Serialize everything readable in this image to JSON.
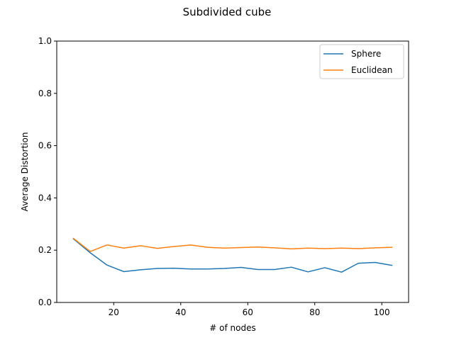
{
  "chart_data": {
    "type": "line",
    "title": "Subdivided cube",
    "xlabel": "# of nodes",
    "ylabel": "Average Distortion",
    "xlim": [
      3,
      108
    ],
    "ylim": [
      0,
      1.0
    ],
    "xticks": [
      20,
      40,
      60,
      80,
      100
    ],
    "xtick_labels": [
      "20",
      "40",
      "60",
      "80",
      "100"
    ],
    "yticks": [
      0,
      0.2,
      0.4,
      0.6,
      0.8,
      1.0
    ],
    "ytick_labels": [
      "0.0",
      "0.2",
      "0.4",
      "0.6",
      "0.8",
      "1.0"
    ],
    "grid": false,
    "legend_position": "top-right",
    "x": [
      8,
      13,
      18,
      23,
      28,
      33,
      38,
      43,
      48,
      53,
      58,
      63,
      68,
      73,
      78,
      83,
      88,
      93,
      98,
      103
    ],
    "series": [
      {
        "name": "Sphere",
        "color": "#1f77b4",
        "values": [
          0.243,
          0.19,
          0.143,
          0.118,
          0.125,
          0.13,
          0.131,
          0.128,
          0.128,
          0.13,
          0.134,
          0.126,
          0.126,
          0.135,
          0.117,
          0.133,
          0.116,
          0.15,
          0.153,
          0.142
        ]
      },
      {
        "name": "Euclidean",
        "color": "#ff7f0e",
        "values": [
          0.245,
          0.195,
          0.22,
          0.208,
          0.217,
          0.207,
          0.214,
          0.22,
          0.211,
          0.208,
          0.21,
          0.212,
          0.209,
          0.205,
          0.208,
          0.206,
          0.208,
          0.206,
          0.209,
          0.211
        ]
      }
    ]
  }
}
